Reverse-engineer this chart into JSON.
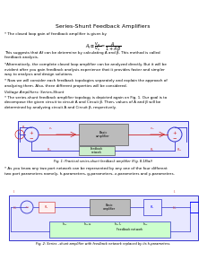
{
  "title": "Series-Shunt Feedback Amplifiers",
  "background_color": "#ffffff",
  "text_color": "#000000",
  "fig1_caption": "Fig. 1: Practical series-shunt feedback amplifier (Fig. 8.18(a))",
  "fig2_caption": "Fig. 2: Series –shunt amplifier with feedback network replaced by its h-parameters.",
  "fs_title": 4.5,
  "fs_body": 3.0,
  "fs_caption": 2.6,
  "para1": "* The closed loop gain of feedback amplifier is given by",
  "para2": "This suggests that Af can be determine by calculating A and β. This method is called\nfeedback analysis.",
  "para3": "*Alternatively, the complete closed loop amplifier can be analyzed directly. But it will be\nevident after you gain feedback analysis experience that it provides faster and simpler\nway to analysis and design solutions.",
  "para4": "* Now we will consider each feedback topologies separately and explain the approach of\nanalyzing them. Also, three different properties will be considered.",
  "para5": "Voltage Amplifiers: Series-Shunt",
  "para6": "* The series-shunt feedback amplifier topology is depicted again on Fig. 1. Our goal is to\ndecompose the given circuit to circuit A and Circuit β. Then, values of A and β will be\ndetermined by analyzing circuit A and Circuit β, respectively.",
  "para7": "* As you know any two port network can be represented by any one of the four different\ntwo port parameters namely, h-parameters, g-parameters, z-parameters and y-parameters."
}
